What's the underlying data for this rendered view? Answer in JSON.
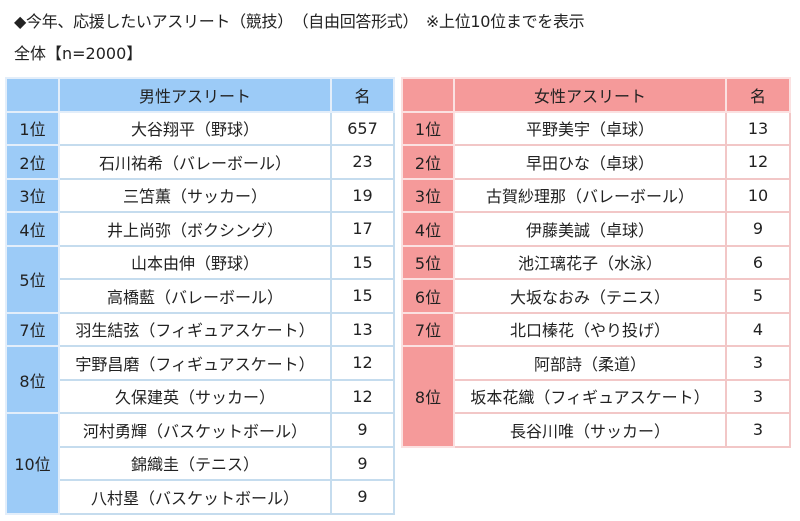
{
  "header": {
    "title": "◆今年、応援したいアスリート（競技）　（自由回答形式）　※上位10位までを表示",
    "subtitle": "全体【n=2000】"
  },
  "colors": {
    "male_header": "#9ccbf7",
    "female_header": "#f59a9a",
    "male_border": "#c5dcee",
    "female_border": "#f2c7c7"
  },
  "male_table": {
    "col_name": "男性アスリート",
    "col_count": "名",
    "groups": [
      {
        "rank": "1位",
        "rows": [
          {
            "name": "大谷翔平（野球）",
            "count": "657"
          }
        ]
      },
      {
        "rank": "2位",
        "rows": [
          {
            "name": "石川祐希（バレーボール）",
            "count": "23"
          }
        ]
      },
      {
        "rank": "3位",
        "rows": [
          {
            "name": "三笘薫（サッカー）",
            "count": "19"
          }
        ]
      },
      {
        "rank": "4位",
        "rows": [
          {
            "name": "井上尚弥（ボクシング）",
            "count": "17"
          }
        ]
      },
      {
        "rank": "5位",
        "rows": [
          {
            "name": "山本由伸（野球）",
            "count": "15"
          },
          {
            "name": "高橋藍（バレーボール）",
            "count": "15"
          }
        ]
      },
      {
        "rank": "7位",
        "rows": [
          {
            "name": "羽生結弦（フィギュアスケート）",
            "count": "13"
          }
        ]
      },
      {
        "rank": "8位",
        "rows": [
          {
            "name": "宇野昌磨（フィギュアスケート）",
            "count": "12"
          },
          {
            "name": "久保建英（サッカー）",
            "count": "12"
          }
        ]
      },
      {
        "rank": "10位",
        "rows": [
          {
            "name": "河村勇輝（バスケットボール）",
            "count": "9"
          },
          {
            "name": "錦織圭（テニス）",
            "count": "9"
          },
          {
            "name": "八村塁（バスケットボール）",
            "count": "9"
          }
        ]
      }
    ]
  },
  "female_table": {
    "col_name": "女性アスリート",
    "col_count": "名",
    "groups": [
      {
        "rank": "1位",
        "rows": [
          {
            "name": "平野美宇（卓球）",
            "count": "13"
          }
        ]
      },
      {
        "rank": "2位",
        "rows": [
          {
            "name": "早田ひな（卓球）",
            "count": "12"
          }
        ]
      },
      {
        "rank": "3位",
        "rows": [
          {
            "name": "古賀紗理那（バレーボール）",
            "count": "10"
          }
        ]
      },
      {
        "rank": "4位",
        "rows": [
          {
            "name": "伊藤美誠（卓球）",
            "count": "9"
          }
        ]
      },
      {
        "rank": "5位",
        "rows": [
          {
            "name": "池江璃花子（水泳）",
            "count": "6"
          }
        ]
      },
      {
        "rank": "6位",
        "rows": [
          {
            "name": "大坂なおみ（テニス）",
            "count": "5"
          }
        ]
      },
      {
        "rank": "7位",
        "rows": [
          {
            "name": "北口榛花（やり投げ）",
            "count": "4"
          }
        ]
      },
      {
        "rank": "8位",
        "rows": [
          {
            "name": "阿部詩（柔道）",
            "count": "3"
          },
          {
            "name": "坂本花織（フィギュアスケート）",
            "count": "3"
          },
          {
            "name": "長谷川唯（サッカー）",
            "count": "3"
          }
        ]
      }
    ]
  }
}
